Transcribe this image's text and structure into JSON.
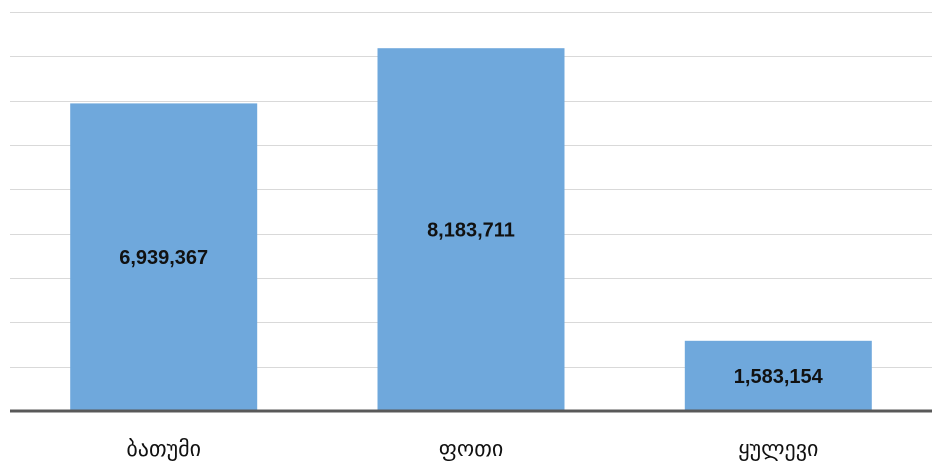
{
  "chart_data": {
    "type": "bar",
    "categories": [
      "ბათუმი",
      "ფოთი",
      "ყულევი"
    ],
    "values": [
      6939367,
      8183711,
      1583154
    ],
    "data_labels": [
      "6,939,367",
      "8,183,711",
      "1,583,154"
    ],
    "title": "",
    "xlabel": "",
    "ylabel": "",
    "ylim": [
      0,
      9000000
    ],
    "grid": true,
    "gridline_step": 1000000,
    "bar_color": "#6fa8dc",
    "legend": "none"
  }
}
